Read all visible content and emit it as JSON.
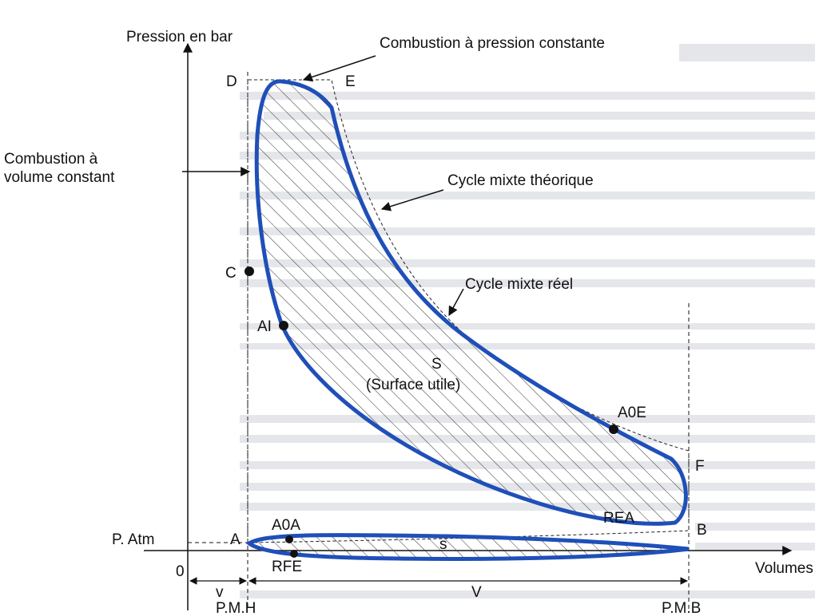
{
  "axes": {
    "y_label": "Pression en bar",
    "x_label": "Volumes",
    "origin": "0"
  },
  "annotations": {
    "pressure_combustion": "Combustion à pression constante",
    "volume_combustion": [
      "Combustion à",
      "volume constant"
    ],
    "theoretical_cycle": "Cycle mixte théorique",
    "real_cycle": "Cycle mixte réel",
    "useful_surface": [
      "S",
      "(Surface utile)"
    ],
    "pumping_surface": "s"
  },
  "points": {
    "D": "D",
    "E": "E",
    "C": "C",
    "AI": "AI",
    "A0E": "A0E",
    "F": "F",
    "REA": "REA",
    "A": "A",
    "A0A": "A0A",
    "B": "B",
    "RFE": "RFE",
    "patm": "P. Atm"
  },
  "dimensions": {
    "small_volume": "v",
    "large_volume": "V",
    "pmh": "P.M.H",
    "pmb": "P.M.B"
  }
}
